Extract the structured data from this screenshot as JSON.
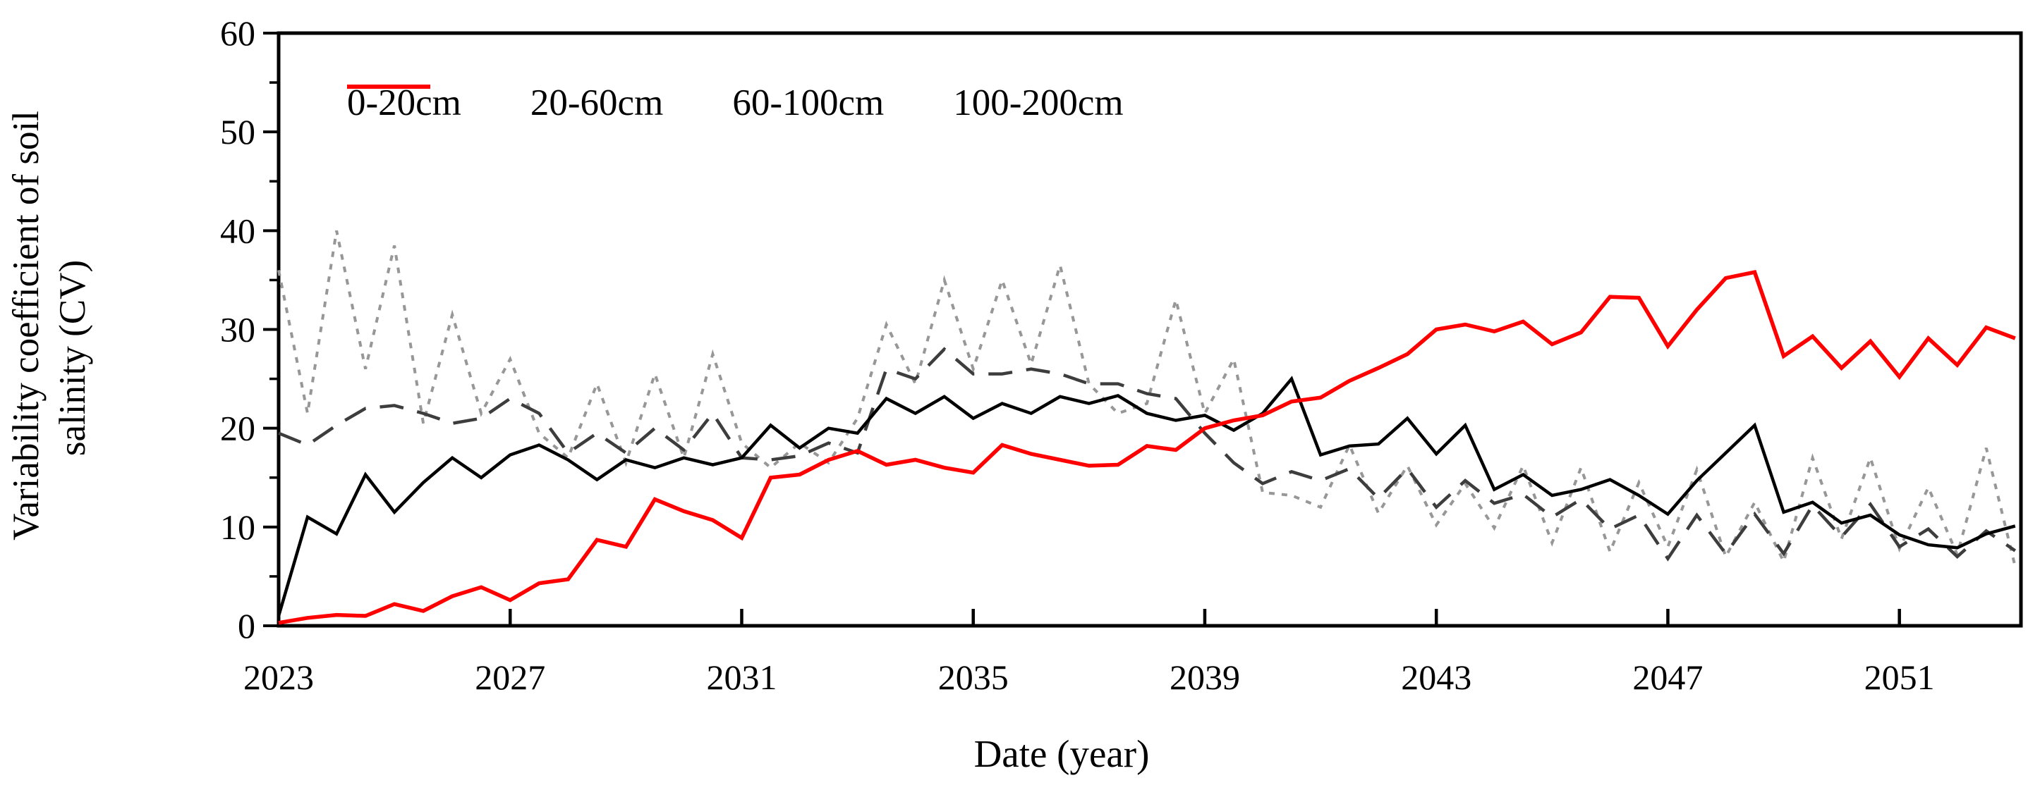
{
  "figure": {
    "ylabel_line1": "Variability coefficient of soil",
    "ylabel_line2": "salinity (CV)",
    "xlabel": "Date (year)"
  },
  "chart_data": {
    "type": "line",
    "title": "",
    "xlabel": "Date (year)",
    "ylabel": "Variability coefficient of soil salinity (CV)",
    "ylim": [
      0,
      60
    ],
    "xlim": [
      2023,
      2053.1
    ],
    "ytick_major": [
      0,
      10,
      20,
      30,
      40,
      50,
      60
    ],
    "ytick_minor_step": 5,
    "xticks": [
      2023,
      2027,
      2031,
      2035,
      2039,
      2043,
      2047,
      2051
    ],
    "grid": false,
    "legend_position": "top-inside",
    "x": [
      2023,
      2023.5,
      2024,
      2024.5,
      2025,
      2025.5,
      2026,
      2026.5,
      2027,
      2027.5,
      2028,
      2028.5,
      2029,
      2029.5,
      2030,
      2030.5,
      2031,
      2031.5,
      2032,
      2032.5,
      2033,
      2033.5,
      2034,
      2034.5,
      2035,
      2035.5,
      2036,
      2036.5,
      2037,
      2037.5,
      2038,
      2038.5,
      2039,
      2039.5,
      2040,
      2040.5,
      2041,
      2041.5,
      2042,
      2042.5,
      2043,
      2043.5,
      2044,
      2044.5,
      2045,
      2045.5,
      2046,
      2046.5,
      2047,
      2047.5,
      2048,
      2048.5,
      2049,
      2049.5,
      2050,
      2050.5,
      2051,
      2051.5,
      2052,
      2052.5,
      2053
    ],
    "series": [
      {
        "name": "0-20cm",
        "color": "#979797",
        "style": "dotted",
        "values": [
          36,
          21.5,
          40,
          26,
          38.5,
          20.5,
          31.5,
          21.5,
          27,
          19.5,
          17,
          24.5,
          16.5,
          25.5,
          17,
          27.5,
          18.5,
          16,
          18.5,
          16.5,
          21,
          30.5,
          24.5,
          35,
          26,
          35,
          26.5,
          36.5,
          24.5,
          21.5,
          22.5,
          33,
          21.5,
          27,
          13.5,
          13.2,
          12,
          18.3,
          11.4,
          16.2,
          10.2,
          14.4,
          9.9,
          16.2,
          8.4,
          16,
          7.5,
          14.5,
          8,
          15.8,
          7,
          12.5,
          6.5,
          17,
          8.8,
          17,
          7.8,
          14,
          7.2,
          18,
          6
        ]
      },
      {
        "name": "20-60cm",
        "color": "#3d3d3d",
        "style": "dashed",
        "values": [
          19.5,
          18.3,
          20.3,
          22,
          22.3,
          21.5,
          20.5,
          21,
          23,
          21.5,
          17.5,
          19.5,
          17.5,
          20,
          17.8,
          21.5,
          17,
          16.8,
          17.2,
          18.5,
          17.5,
          26,
          25,
          28,
          25.5,
          25.5,
          26,
          25.5,
          24.5,
          24.5,
          23.5,
          23,
          19.5,
          16.5,
          14.4,
          15.6,
          14.7,
          15.9,
          12.9,
          15.9,
          12,
          14.7,
          12.4,
          13.3,
          11,
          12.8,
          9.8,
          11.2,
          6.8,
          11.2,
          7.3,
          11.3,
          7.3,
          12.2,
          9,
          12.3,
          8,
          9.8,
          7,
          9.6,
          7.6
        ]
      },
      {
        "name": "60-100cm",
        "color": "#000000",
        "style": "solid",
        "values": [
          1,
          11,
          9.3,
          15.3,
          11.5,
          14.5,
          17,
          15,
          17.3,
          18.3,
          16.8,
          14.8,
          16.8,
          16,
          17,
          16.3,
          17,
          20.3,
          18,
          20,
          19.5,
          23,
          21.5,
          23.2,
          21,
          22.5,
          21.5,
          23.2,
          22.5,
          23.3,
          21.5,
          20.8,
          21.3,
          19.8,
          21.5,
          25,
          17.3,
          18.2,
          18.4,
          21,
          17.4,
          20.3,
          13.8,
          15.3,
          13.2,
          13.8,
          14.8,
          13.2,
          11.3,
          14.7,
          17.5,
          20.3,
          11.5,
          12.5,
          10.4,
          11.2,
          9.2,
          8.2,
          7.9,
          9.3,
          10.1
        ]
      },
      {
        "name": "100-200cm",
        "color": "#ff0000",
        "style": "solid",
        "values": [
          0.3,
          0.8,
          1.1,
          1,
          2.2,
          1.5,
          3,
          3.9,
          2.6,
          4.3,
          4.7,
          8.7,
          8,
          12.8,
          11.6,
          10.7,
          8.9,
          15,
          15.3,
          16.8,
          17.7,
          16.3,
          16.8,
          16,
          15.5,
          18.3,
          17.4,
          16.8,
          16.2,
          16.3,
          18.2,
          17.8,
          20,
          20.8,
          21.3,
          22.7,
          23.1,
          24.8,
          26.1,
          27.5,
          30,
          30.5,
          29.8,
          30.8,
          28.5,
          29.7,
          33.3,
          33.2,
          28.3,
          32,
          35.2,
          35.8,
          27.3,
          29.3,
          26.1,
          28.8,
          25.2,
          29.1,
          26.4,
          30.2,
          29.1
        ]
      }
    ]
  }
}
